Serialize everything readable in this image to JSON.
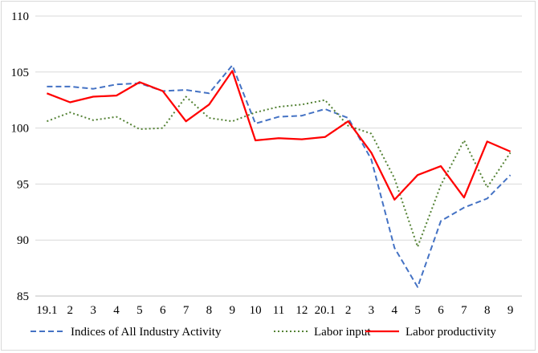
{
  "chart_data": {
    "type": "line",
    "title": "",
    "xlabel": "",
    "ylabel": "",
    "ylim": [
      85,
      110
    ],
    "yticks": [
      85,
      90,
      95,
      100,
      105,
      110
    ],
    "grid": "horizontal",
    "legend_position": "bottom",
    "categories": [
      "19.1",
      "2",
      "3",
      "4",
      "5",
      "6",
      "7",
      "8",
      "9",
      "10",
      "11",
      "12",
      "20.1",
      "2",
      "3",
      "4",
      "5",
      "6",
      "7",
      "8",
      "9"
    ],
    "series": [
      {
        "name": "Indices of All Industry Activity",
        "color": "#4472c4",
        "style": "dashed",
        "values": [
          103.7,
          103.7,
          103.5,
          103.9,
          104.0,
          103.3,
          103.4,
          103.1,
          105.6,
          100.4,
          101.0,
          101.1,
          101.7,
          100.9,
          97.2,
          89.3,
          85.8,
          91.7,
          92.9,
          93.7,
          95.8
        ]
      },
      {
        "name": "Labor input",
        "color": "#548235",
        "style": "dotted",
        "values": [
          100.6,
          101.4,
          100.7,
          101.0,
          99.9,
          100.0,
          102.8,
          100.9,
          100.6,
          101.4,
          101.9,
          102.1,
          102.5,
          100.2,
          99.5,
          95.5,
          89.4,
          94.9,
          98.9,
          94.7,
          97.8
        ]
      },
      {
        "name": "Labor productivity",
        "color": "#ff0000",
        "style": "solid",
        "values": [
          103.1,
          102.3,
          102.8,
          102.9,
          104.1,
          103.3,
          100.6,
          102.1,
          105.1,
          98.9,
          99.1,
          99.0,
          99.2,
          100.6,
          97.8,
          93.6,
          95.8,
          96.6,
          93.8,
          98.8,
          97.9
        ]
      }
    ]
  }
}
